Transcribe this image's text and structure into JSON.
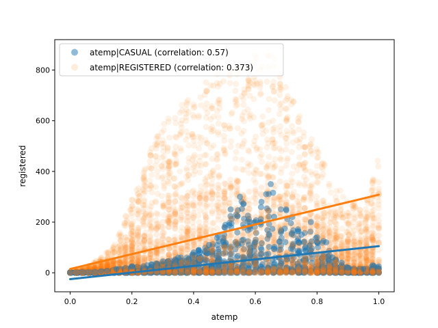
{
  "chart_data": {
    "type": "scatter",
    "title": "",
    "xlabel": "atemp",
    "ylabel": "registered",
    "xlim": [
      -0.05,
      1.05
    ],
    "ylim": [
      -75,
      920
    ],
    "xticks": [
      0.0,
      0.2,
      0.4,
      0.6,
      0.8,
      1.0
    ],
    "xtick_labels": [
      "0.0",
      "0.2",
      "0.4",
      "0.6",
      "0.8",
      "1.0"
    ],
    "yticks": [
      0,
      200,
      400,
      600,
      800
    ],
    "ytick_labels": [
      "0",
      "200",
      "400",
      "600",
      "800"
    ],
    "grid": false,
    "legend_position": "top-left",
    "series": [
      {
        "name": "atemp|CASUAL (correlation: 0.57)",
        "color": "#1f77b4",
        "alpha": 0.5,
        "fit_line": {
          "x": [
            0.0,
            1.0
          ],
          "y": [
            -25,
            105
          ]
        },
        "sample_points": [
          [
            0.0,
            2
          ],
          [
            0.02,
            1
          ],
          [
            0.04,
            3
          ],
          [
            0.06,
            2
          ],
          [
            0.08,
            4
          ],
          [
            0.1,
            6
          ],
          [
            0.12,
            8
          ],
          [
            0.15,
            15
          ],
          [
            0.2,
            25
          ],
          [
            0.25,
            30
          ],
          [
            0.3,
            45
          ],
          [
            0.35,
            60
          ],
          [
            0.4,
            80
          ],
          [
            0.45,
            110
          ],
          [
            0.5,
            180
          ],
          [
            0.52,
            250
          ],
          [
            0.55,
            300
          ],
          [
            0.6,
            200
          ],
          [
            0.62,
            280
          ],
          [
            0.65,
            350
          ],
          [
            0.7,
            250
          ],
          [
            0.72,
            220
          ],
          [
            0.75,
            150
          ],
          [
            0.78,
            200
          ],
          [
            0.8,
            140
          ],
          [
            0.83,
            120
          ],
          [
            0.85,
            60
          ],
          [
            0.88,
            40
          ],
          [
            0.9,
            20
          ],
          [
            0.95,
            15
          ],
          [
            0.98,
            30
          ],
          [
            1.0,
            25
          ]
        ]
      },
      {
        "name": "atemp|REGISTERED (correlation: 0.373)",
        "color": "#ff7f0e",
        "alpha": 0.1,
        "fit_line": {
          "x": [
            0.0,
            1.0
          ],
          "y": [
            15,
            308
          ]
        },
        "sample_points": [
          [
            0.0,
            5
          ],
          [
            0.05,
            20
          ],
          [
            0.1,
            60
          ],
          [
            0.15,
            120
          ],
          [
            0.2,
            300
          ],
          [
            0.25,
            450
          ],
          [
            0.3,
            600
          ],
          [
            0.35,
            650
          ],
          [
            0.4,
            700
          ],
          [
            0.45,
            780
          ],
          [
            0.5,
            800
          ],
          [
            0.55,
            820
          ],
          [
            0.6,
            860
          ],
          [
            0.65,
            880
          ],
          [
            0.7,
            750
          ],
          [
            0.75,
            600
          ],
          [
            0.8,
            500
          ],
          [
            0.85,
            350
          ],
          [
            0.9,
            300
          ],
          [
            0.95,
            250
          ],
          [
            1.0,
            460
          ]
        ]
      }
    ]
  }
}
